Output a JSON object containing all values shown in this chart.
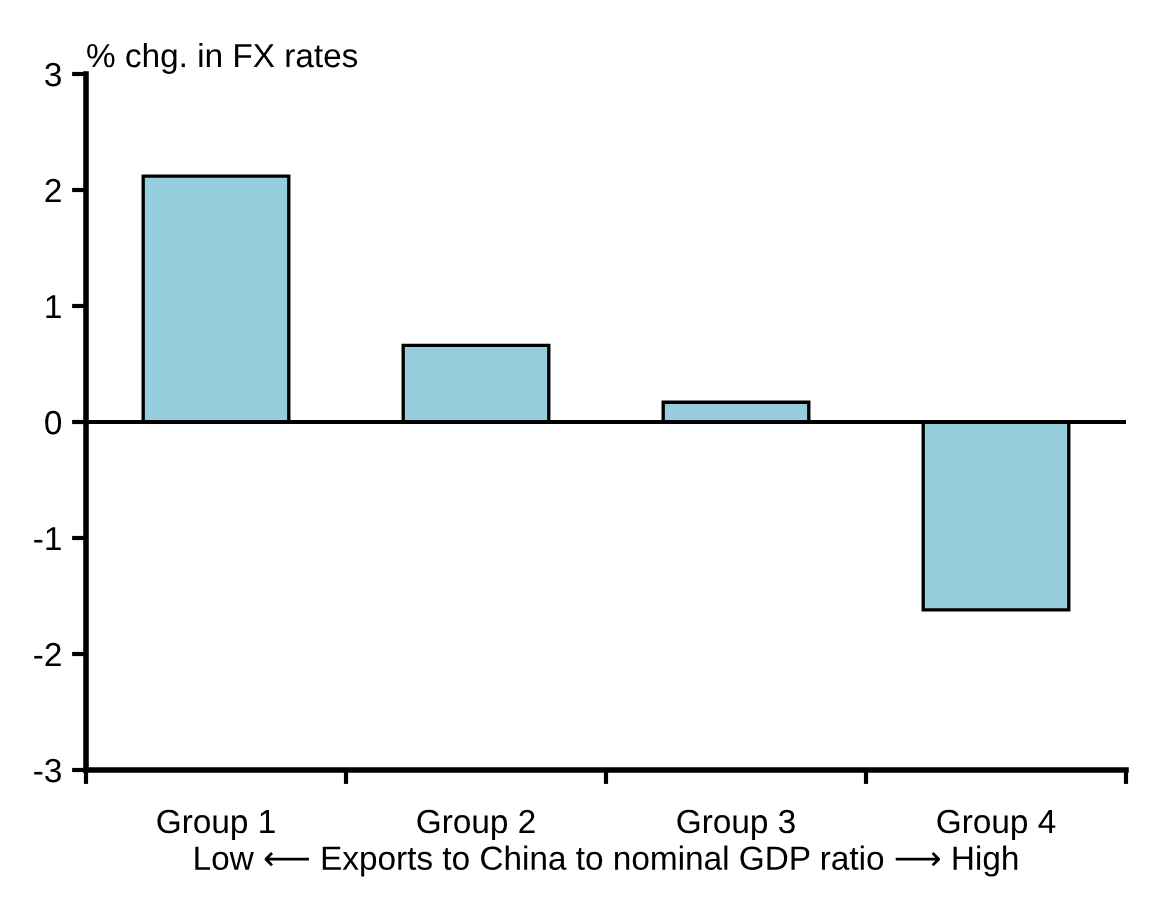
{
  "chart_data": {
    "type": "bar",
    "ylabel": "% chg. in FX rates",
    "xlabel": "Low ⟵ Exports to China to nominal GDP ratio ⟶ High",
    "categories": [
      "Group 1",
      "Group 2",
      "Group 3",
      "Group 4"
    ],
    "values": [
      2.12,
      0.66,
      0.17,
      -1.62
    ],
    "color": "#96cddc",
    "ylim": [
      -3,
      3
    ],
    "yticks": [
      -3,
      -2,
      -1,
      0,
      1,
      2,
      3
    ],
    "ref_lines": [
      {
        "axis": "y",
        "value": 0,
        "color": "#000000"
      }
    ],
    "grid": false,
    "legend": false
  }
}
